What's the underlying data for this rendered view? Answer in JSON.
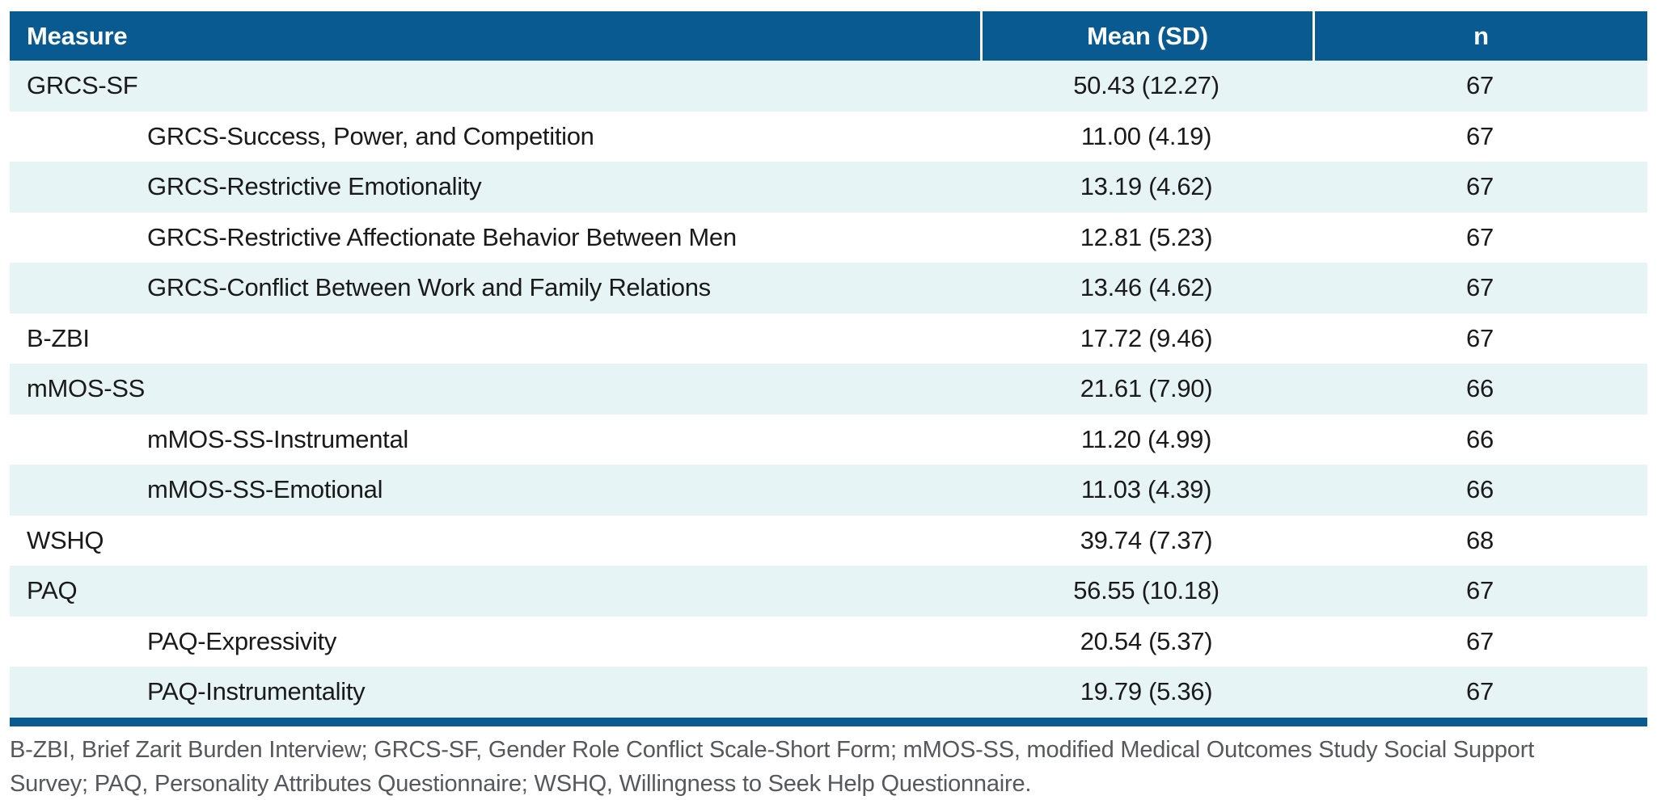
{
  "table": {
    "columns": [
      "Measure",
      "Mean (SD)",
      "n"
    ],
    "rows": [
      {
        "measure": "GRCS-SF",
        "indent": false,
        "mean_sd": "50.43 (12.27)",
        "n": "67"
      },
      {
        "measure": "GRCS-Success, Power, and Competition",
        "indent": true,
        "mean_sd": "11.00 (4.19)",
        "n": "67"
      },
      {
        "measure": "GRCS-Restrictive Emotionality",
        "indent": true,
        "mean_sd": "13.19 (4.62)",
        "n": "67"
      },
      {
        "measure": "GRCS-Restrictive Affectionate Behavior Between Men",
        "indent": true,
        "mean_sd": "12.81 (5.23)",
        "n": "67"
      },
      {
        "measure": "GRCS-Conflict Between Work and Family Relations",
        "indent": true,
        "mean_sd": "13.46 (4.62)",
        "n": "67"
      },
      {
        "measure": "B-ZBI",
        "indent": false,
        "mean_sd": "17.72 (9.46)",
        "n": "67"
      },
      {
        "measure": "mMOS-SS",
        "indent": false,
        "mean_sd": "21.61 (7.90)",
        "n": "66"
      },
      {
        "measure": "mMOS-SS-Instrumental",
        "indent": true,
        "mean_sd": "11.20 (4.99)",
        "n": "66"
      },
      {
        "measure": "mMOS-SS-Emotional",
        "indent": true,
        "mean_sd": "11.03 (4.39)",
        "n": "66"
      },
      {
        "measure": "WSHQ",
        "indent": false,
        "mean_sd": "39.74 (7.37)",
        "n": "68"
      },
      {
        "measure": "PAQ",
        "indent": false,
        "mean_sd": "56.55 (10.18)",
        "n": "67"
      },
      {
        "measure": "PAQ-Expressivity",
        "indent": true,
        "mean_sd": "20.54 (5.37)",
        "n": "67"
      },
      {
        "measure": "PAQ-Instrumentality",
        "indent": true,
        "mean_sd": "19.79 (5.36)",
        "n": "67"
      }
    ],
    "footnote": "B-ZBI, Brief Zarit Burden Interview; GRCS-SF, Gender Role Conflict Scale-Short Form; mMOS-SS, modified Medical Outcomes Study Social Support Survey; PAQ, Personality Attributes Questionnaire; WSHQ, Willingness to Seek Help Questionnaire."
  },
  "colors": {
    "header_bg": "#0a5a92",
    "row_alt_bg": "#e7f4f6",
    "bottom_rule": "#0a5a92",
    "body_text": "#1a1a1a",
    "footnote_text": "#55585c"
  }
}
